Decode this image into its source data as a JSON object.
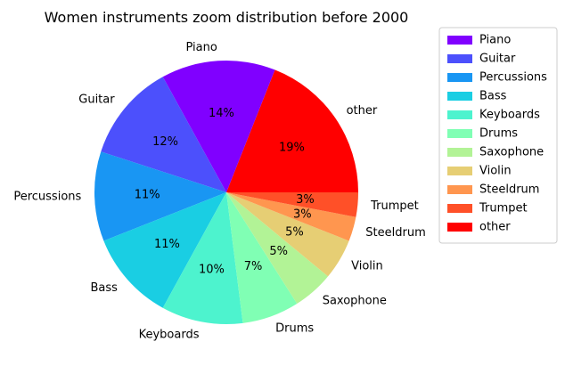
{
  "chart_data": {
    "type": "pie",
    "title": "Women instruments zoom distribution before 2000",
    "start_angle_deg": 0,
    "direction": "counterclockwise",
    "legend_position": "right",
    "slices": [
      {
        "label": "other",
        "value": 19,
        "pct_label": "19%",
        "color": "#ff0000"
      },
      {
        "label": "Piano",
        "value": 14,
        "pct_label": "14%",
        "color": "#8000ff"
      },
      {
        "label": "Guitar",
        "value": 12,
        "pct_label": "12%",
        "color": "#4c50fc"
      },
      {
        "label": "Percussions",
        "value": 11,
        "pct_label": "11%",
        "color": "#1996f3"
      },
      {
        "label": "Bass",
        "value": 11,
        "pct_label": "11%",
        "color": "#1acee3"
      },
      {
        "label": "Keyboards",
        "value": 10,
        "pct_label": "10%",
        "color": "#4df3ce"
      },
      {
        "label": "Drums",
        "value": 7,
        "pct_label": "7%",
        "color": "#80ffb4"
      },
      {
        "label": "Saxophone",
        "value": 5,
        "pct_label": "5%",
        "color": "#b2f396"
      },
      {
        "label": "Violin",
        "value": 5,
        "pct_label": "5%",
        "color": "#e6ce74"
      },
      {
        "label": "Steeldrum",
        "value": 3,
        "pct_label": "3%",
        "color": "#ff964f"
      },
      {
        "label": "Trumpet",
        "value": 3,
        "pct_label": "3%",
        "color": "#ff5028"
      }
    ],
    "legend": [
      {
        "label": "Piano",
        "color": "#8000ff"
      },
      {
        "label": "Guitar",
        "color": "#4c50fc"
      },
      {
        "label": "Percussions",
        "color": "#1996f3"
      },
      {
        "label": "Bass",
        "color": "#1acee3"
      },
      {
        "label": "Keyboards",
        "color": "#4df3ce"
      },
      {
        "label": "Drums",
        "color": "#80ffb4"
      },
      {
        "label": "Saxophone",
        "color": "#b2f396"
      },
      {
        "label": "Violin",
        "color": "#e6ce74"
      },
      {
        "label": "Steeldrum",
        "color": "#ff964f"
      },
      {
        "label": "Trumpet",
        "color": "#ff5028"
      },
      {
        "label": "other",
        "color": "#ff0000"
      }
    ]
  }
}
